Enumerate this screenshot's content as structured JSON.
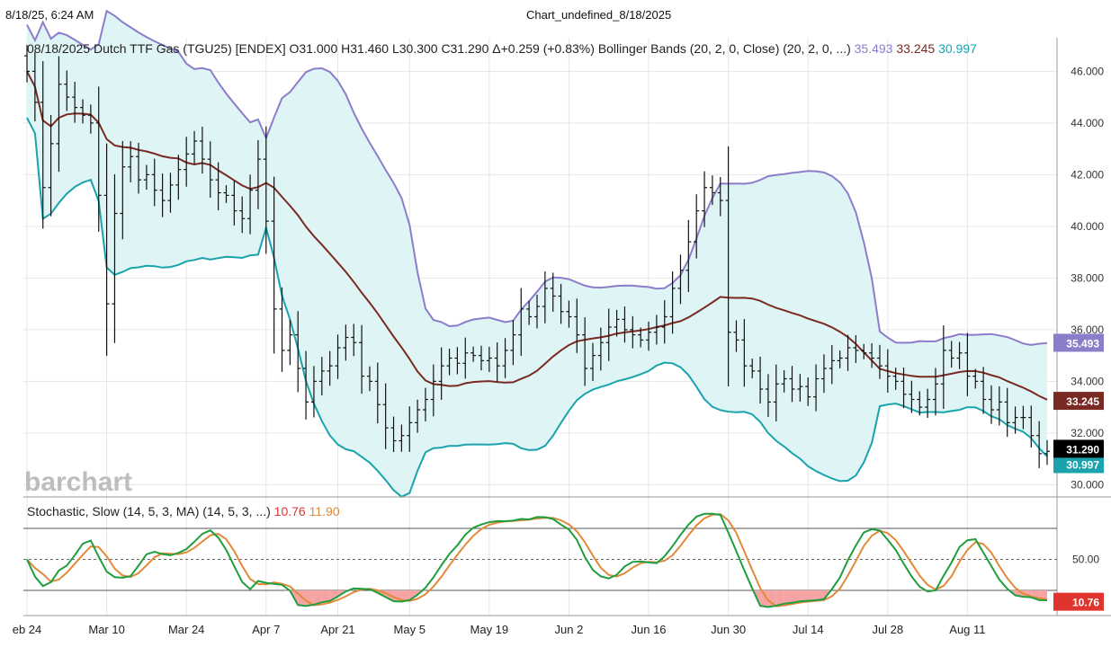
{
  "header": {
    "datetime": "8/18/25, 6:24 AM",
    "title": "Chart_undefined_8/18/2025"
  },
  "watermark": "barchart",
  "colors": {
    "band_fill": "#dff5f5",
    "upper": "#8c7dca",
    "middle": "#7a2a22",
    "lower": "#1aa3ad",
    "bar": "#111111",
    "stoch_k": "#1f9e3f",
    "stoch_d": "#e08a3a",
    "stoch_low_fill": "#f5a3a3",
    "stoch_high": "#3a44c8",
    "last_label_bg": "#000000",
    "upper_label_bg": "#8c7dca",
    "middle_label_bg": "#7a2a22",
    "lower_label_bg": "#1aa3ad",
    "stoch_label_bg": "#e0342f"
  },
  "chart_data": [
    {
      "type": "ohlc",
      "title_parts": {
        "instrument": "08/18/2025 Dutch TTF Gas (TGU25) [ENDEX]",
        "ohlc": "O31.000 H31.460 L30.300 C31.290 Δ+0.259 (+0.83%)",
        "indicator": "Bollinger Bands (20, 2, 0, Close)",
        "indicator_params": "(20, 2, 0, ...)",
        "upper_value": "35.493",
        "middle_value": "33.245",
        "lower_value": "30.997"
      },
      "y_ticks": [
        "30.000",
        "32.000",
        "34.000",
        "36.000",
        "38.000",
        "40.000",
        "42.000",
        "44.000",
        "46.000"
      ],
      "ylim": [
        29.7,
        47.3
      ],
      "x_ticks": [
        {
          "label": "eb 24",
          "i": 0
        },
        {
          "label": "Mar 10",
          "i": 10
        },
        {
          "label": "Mar 24",
          "i": 20
        },
        {
          "label": "Apr 7",
          "i": 30
        },
        {
          "label": "Apr 21",
          "i": 39
        },
        {
          "label": "May 5",
          "i": 48
        },
        {
          "label": "May 19",
          "i": 58
        },
        {
          "label": "Jun 2",
          "i": 68
        },
        {
          "label": "Jun 16",
          "i": 78
        },
        {
          "label": "Jun 30",
          "i": 88
        },
        {
          "label": "Jul 14",
          "i": 98
        },
        {
          "label": "Jul 28",
          "i": 108
        },
        {
          "label": "Aug 11",
          "i": 118
        }
      ],
      "last_labels": {
        "upper": "35.493",
        "middle": "33.245",
        "last": "31.290",
        "lower": "30.997"
      },
      "closes": [
        46.0,
        44.8,
        41.5,
        43.2,
        45.5,
        45.0,
        44.6,
        44.3,
        44.0,
        41.2,
        37.0,
        40.5,
        42.3,
        42.7,
        41.8,
        42.0,
        41.4,
        41.0,
        41.6,
        42.2,
        42.8,
        43.3,
        42.6,
        41.8,
        41.3,
        41.2,
        40.6,
        40.3,
        41.4,
        42.6,
        40.2,
        36.8,
        35.2,
        35.8,
        34.5,
        33.2,
        34.0,
        34.4,
        34.6,
        35.3,
        35.7,
        35.5,
        34.2,
        34.0,
        33.1,
        32.2,
        31.7,
        31.9,
        32.4,
        32.9,
        33.3,
        34.0,
        34.6,
        34.9,
        34.7,
        35.1,
        35.0,
        34.8,
        34.9,
        34.6,
        35.2,
        35.8,
        36.8,
        36.5,
        36.9,
        37.6,
        37.3,
        36.7,
        36.5,
        35.8,
        34.5,
        35.0,
        35.5,
        36.1,
        36.4,
        36.0,
        35.8,
        35.6,
        35.9,
        36.1,
        36.5,
        37.6,
        38.3,
        39.4,
        40.6,
        41.5,
        41.3,
        41.0,
        35.9,
        35.6,
        34.6,
        34.4,
        33.7,
        33.2,
        33.9,
        34.1,
        33.7,
        33.8,
        33.4,
        34.1,
        34.5,
        34.8,
        34.9,
        35.3,
        35.2,
        35.1,
        34.9,
        34.6,
        34.2,
        34.0,
        33.5,
        33.3,
        33.0,
        33.3,
        33.9,
        35.2,
        34.9,
        35.1,
        34.2,
        34.0,
        33.3,
        32.9,
        33.2,
        32.4,
        32.6,
        32.6,
        31.9,
        31.2,
        31.29
      ],
      "stochastic": {
        "label": "Stochastic, Slow (14, 5, 3, MA)",
        "params": "(14, 5, 3, ...)",
        "k_value": "10.76",
        "d_value": "11.90",
        "last_label": "10.76",
        "y_ticks": [
          "50.00"
        ],
        "levels": {
          "overbought": 80,
          "mid": 50,
          "oversold": 20
        },
        "ylim": [
          0,
          100
        ]
      }
    }
  ]
}
